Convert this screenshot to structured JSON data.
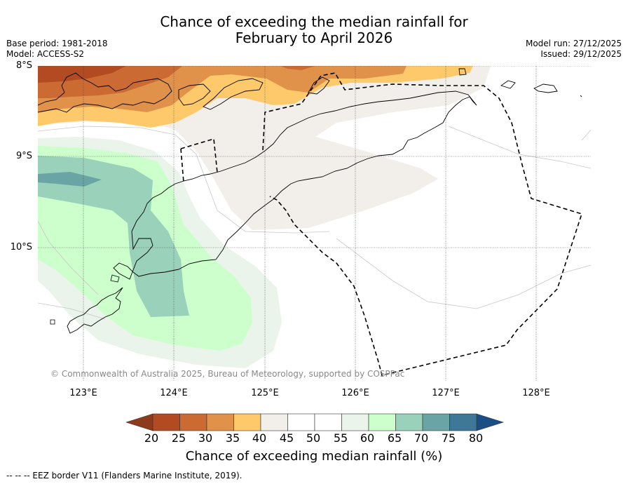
{
  "title": {
    "line1": "Chance of exceeding the median rainfall for",
    "line2": "February to April 2026"
  },
  "meta_left": {
    "base_period": "Base period: 1981-2018",
    "model": "Model: ACCESS-S2"
  },
  "meta_right": {
    "model_run": "Model run: 27/12/2025",
    "issued": "Issued: 29/12/2025"
  },
  "lat_labels": [
    "8°S",
    "9°S",
    "10°S"
  ],
  "lon_labels": [
    "123°E",
    "124°E",
    "125°E",
    "126°E",
    "127°E",
    "128°E"
  ],
  "copyright": "© Commonwealth of Australia 2025, Bureau of Meteorology, supported by COSPPac",
  "colorbar": {
    "ticks": [
      "20",
      "25",
      "30",
      "35",
      "40",
      "45",
      "50",
      "55",
      "60",
      "65",
      "70",
      "75",
      "80"
    ],
    "colors": [
      "#b24a22",
      "#cc6a33",
      "#e0914a",
      "#fdc96a",
      "#f2eeea",
      "#ffffff",
      "#ffffff",
      "#eaf4ea",
      "#ccffcc",
      "#99d1bb",
      "#6ba4a4",
      "#3f7896"
    ],
    "under_color": "#8e3a1c",
    "over_color": "#1b4e85",
    "title": "Chance of exceeding median rainfall (%)"
  },
  "footer": "--  --  -- EEZ border V11 (Flanders Marine Institute, 2019)."
}
